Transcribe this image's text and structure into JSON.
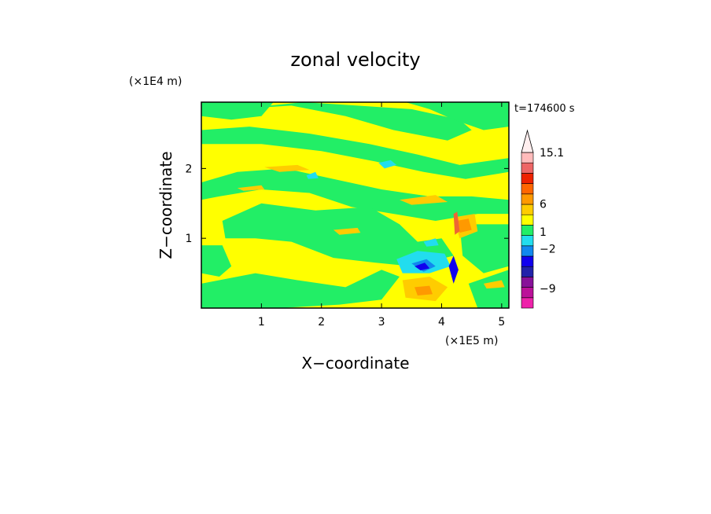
{
  "chart_data": {
    "type": "heatmap",
    "title": "zonal velocity",
    "xlabel": "X−coordinate",
    "ylabel": "Z−coordinate",
    "x_unit": "(×1E5 m)",
    "y_unit": "(×1E4 m)",
    "time_label": "t=174600 s",
    "xlim": [
      0.0,
      5.12
    ],
    "ylim": [
      0.0,
      2.95
    ],
    "x_ticks": [
      1,
      2,
      3,
      4,
      5
    ],
    "y_ticks": [
      1,
      2
    ],
    "colorbar": {
      "labels": [
        {
          "text": "15.1",
          "value": 15.1
        },
        {
          "text": "6",
          "value": 6
        },
        {
          "text": "1",
          "value": 1
        },
        {
          "text": "−2",
          "value": -2
        },
        {
          "text": "−9",
          "value": -9
        }
      ],
      "levels": [
        {
          "color": "#ee22aa"
        },
        {
          "color": "#bb1199"
        },
        {
          "color": "#881199"
        },
        {
          "color": "#2222aa"
        },
        {
          "color": "#1100ee"
        },
        {
          "color": "#1188ee"
        },
        {
          "color": "#22ddee"
        },
        {
          "color": "#22ee66"
        },
        {
          "color": "#ffff00"
        },
        {
          "color": "#ffcc00"
        },
        {
          "color": "#ff9900"
        },
        {
          "color": "#ff6600"
        },
        {
          "color": "#ee2200"
        },
        {
          "color": "#ee6666"
        },
        {
          "color": "#ffbbbb"
        },
        {
          "color": "#ffeeee"
        }
      ]
    },
    "field_colors": {
      "background": "#ffff00",
      "green": "#22ee66",
      "cyan": "#22ddee",
      "lightblue": "#1188ee",
      "blue": "#1100ee",
      "orange": "#ffcc00",
      "darkorange": "#ff9900",
      "red": "#ee6633"
    },
    "bands": [
      {
        "color": "green",
        "points": [
          [
            0,
            2.95
          ],
          [
            1.2,
            2.95
          ],
          [
            1.0,
            2.75
          ],
          [
            0.5,
            2.7
          ],
          [
            0,
            2.75
          ]
        ]
      },
      {
        "color": "green",
        "points": [
          [
            0.55,
            2.85
          ],
          [
            1.5,
            2.9
          ],
          [
            2.4,
            2.75
          ],
          [
            3.2,
            2.55
          ],
          [
            4.1,
            2.4
          ],
          [
            4.5,
            2.55
          ],
          [
            4.3,
            2.7
          ],
          [
            3.5,
            2.85
          ],
          [
            2.6,
            2.9
          ],
          [
            1.7,
            2.95
          ]
        ]
      },
      {
        "color": "green",
        "points": [
          [
            3.4,
            2.95
          ],
          [
            5.12,
            2.95
          ],
          [
            5.12,
            2.6
          ],
          [
            4.7,
            2.55
          ],
          [
            4.2,
            2.7
          ],
          [
            3.8,
            2.85
          ]
        ]
      },
      {
        "color": "green",
        "points": [
          [
            0,
            2.55
          ],
          [
            0.8,
            2.6
          ],
          [
            1.8,
            2.5
          ],
          [
            2.8,
            2.35
          ],
          [
            3.6,
            2.2
          ],
          [
            4.3,
            2.05
          ],
          [
            5.12,
            2.15
          ],
          [
            5.12,
            1.95
          ],
          [
            4.4,
            1.85
          ],
          [
            3.7,
            1.95
          ],
          [
            2.9,
            2.1
          ],
          [
            2.0,
            2.25
          ],
          [
            1.0,
            2.35
          ],
          [
            0,
            2.35
          ]
        ]
      },
      {
        "color": "green",
        "points": [
          [
            0,
            1.8
          ],
          [
            0.6,
            1.95
          ],
          [
            1.4,
            2.0
          ],
          [
            2.2,
            1.85
          ],
          [
            3.0,
            1.7
          ],
          [
            3.8,
            1.6
          ],
          [
            4.5,
            1.6
          ],
          [
            5.12,
            1.55
          ],
          [
            5.12,
            1.35
          ],
          [
            4.6,
            1.35
          ],
          [
            3.9,
            1.25
          ],
          [
            3.2,
            1.35
          ],
          [
            2.5,
            1.45
          ],
          [
            1.8,
            1.65
          ],
          [
            1.0,
            1.7
          ],
          [
            0.3,
            1.6
          ],
          [
            0,
            1.55
          ]
        ]
      },
      {
        "color": "green",
        "points": [
          [
            0.35,
            1.25
          ],
          [
            1.0,
            1.5
          ],
          [
            1.9,
            1.4
          ],
          [
            2.8,
            1.45
          ],
          [
            3.3,
            1.2
          ],
          [
            3.6,
            0.95
          ],
          [
            4.0,
            1.0
          ],
          [
            4.2,
            0.75
          ],
          [
            3.5,
            0.6
          ],
          [
            2.9,
            0.65
          ],
          [
            2.2,
            0.72
          ],
          [
            1.5,
            0.95
          ],
          [
            0.9,
            1.0
          ],
          [
            0.4,
            1.0
          ]
        ]
      },
      {
        "color": "green",
        "points": [
          [
            0,
            0.9
          ],
          [
            0.35,
            0.9
          ],
          [
            0.5,
            0.6
          ],
          [
            0.3,
            0.45
          ],
          [
            0,
            0.5
          ]
        ]
      },
      {
        "color": "green",
        "points": [
          [
            4.3,
            1.2
          ],
          [
            5.12,
            1.2
          ],
          [
            5.12,
            0.6
          ],
          [
            4.7,
            0.5
          ],
          [
            4.35,
            0.75
          ]
        ]
      },
      {
        "color": "green",
        "points": [
          [
            0,
            0.35
          ],
          [
            0.9,
            0.5
          ],
          [
            1.6,
            0.4
          ],
          [
            2.4,
            0.3
          ],
          [
            3.0,
            0.55
          ],
          [
            3.3,
            0.45
          ],
          [
            3.0,
            0.12
          ],
          [
            2.3,
            0.05
          ],
          [
            1.3,
            0.0
          ],
          [
            0,
            0.0
          ]
        ]
      },
      {
        "color": "green",
        "points": [
          [
            4.45,
            0.35
          ],
          [
            5.12,
            0.55
          ],
          [
            5.12,
            0.0
          ],
          [
            4.6,
            0.0
          ]
        ]
      },
      {
        "color": "cyan",
        "points": [
          [
            3.25,
            0.7
          ],
          [
            3.6,
            0.82
          ],
          [
            4.05,
            0.78
          ],
          [
            4.15,
            0.6
          ],
          [
            3.8,
            0.5
          ],
          [
            3.35,
            0.5
          ]
        ]
      },
      {
        "color": "lightblue",
        "points": [
          [
            3.5,
            0.64
          ],
          [
            3.75,
            0.7
          ],
          [
            3.9,
            0.6
          ],
          [
            3.7,
            0.52
          ]
        ]
      },
      {
        "color": "blue",
        "points": [
          [
            3.55,
            0.6
          ],
          [
            3.72,
            0.65
          ],
          [
            3.8,
            0.57
          ],
          [
            3.65,
            0.54
          ]
        ]
      },
      {
        "color": "cyan",
        "points": [
          [
            2.95,
            2.08
          ],
          [
            3.15,
            2.12
          ],
          [
            3.25,
            2.05
          ],
          [
            3.05,
            2.0
          ]
        ]
      },
      {
        "color": "cyan",
        "points": [
          [
            1.75,
            1.9
          ],
          [
            1.9,
            1.95
          ],
          [
            1.95,
            1.86
          ],
          [
            1.78,
            1.85
          ]
        ]
      },
      {
        "color": "cyan",
        "points": [
          [
            3.7,
            0.95
          ],
          [
            3.9,
            1.0
          ],
          [
            3.95,
            0.9
          ],
          [
            3.75,
            0.88
          ]
        ]
      },
      {
        "color": "orange",
        "points": [
          [
            3.35,
            0.4
          ],
          [
            3.8,
            0.45
          ],
          [
            4.1,
            0.3
          ],
          [
            3.9,
            0.1
          ],
          [
            3.4,
            0.15
          ]
        ]
      },
      {
        "color": "darkorange",
        "points": [
          [
            3.55,
            0.3
          ],
          [
            3.8,
            0.32
          ],
          [
            3.85,
            0.2
          ],
          [
            3.6,
            0.18
          ]
        ]
      },
      {
        "color": "orange",
        "points": [
          [
            4.2,
            1.3
          ],
          [
            4.55,
            1.35
          ],
          [
            4.6,
            1.1
          ],
          [
            4.3,
            1.0
          ]
        ]
      },
      {
        "color": "darkorange",
        "points": [
          [
            4.25,
            1.25
          ],
          [
            4.45,
            1.28
          ],
          [
            4.5,
            1.12
          ],
          [
            4.3,
            1.08
          ]
        ]
      },
      {
        "color": "red",
        "points": [
          [
            4.2,
            1.35
          ],
          [
            4.26,
            1.38
          ],
          [
            4.3,
            1.1
          ],
          [
            4.22,
            1.05
          ]
        ]
      },
      {
        "color": "blue",
        "points": [
          [
            4.12,
            0.6
          ],
          [
            4.2,
            0.75
          ],
          [
            4.28,
            0.55
          ],
          [
            4.2,
            0.35
          ]
        ]
      },
      {
        "color": "orange",
        "points": [
          [
            1.05,
            2.02
          ],
          [
            1.6,
            2.05
          ],
          [
            1.8,
            1.98
          ],
          [
            1.3,
            1.95
          ]
        ]
      },
      {
        "color": "orange",
        "points": [
          [
            0.6,
            1.72
          ],
          [
            1.0,
            1.76
          ],
          [
            1.05,
            1.7
          ],
          [
            0.7,
            1.68
          ]
        ]
      },
      {
        "color": "orange",
        "points": [
          [
            2.2,
            1.12
          ],
          [
            2.6,
            1.15
          ],
          [
            2.65,
            1.08
          ],
          [
            2.3,
            1.05
          ]
        ]
      },
      {
        "color": "orange",
        "points": [
          [
            3.3,
            1.55
          ],
          [
            3.9,
            1.62
          ],
          [
            4.1,
            1.52
          ],
          [
            3.5,
            1.48
          ]
        ]
      },
      {
        "color": "orange",
        "points": [
          [
            4.7,
            0.35
          ],
          [
            5.0,
            0.4
          ],
          [
            5.05,
            0.3
          ],
          [
            4.75,
            0.28
          ]
        ]
      }
    ]
  }
}
